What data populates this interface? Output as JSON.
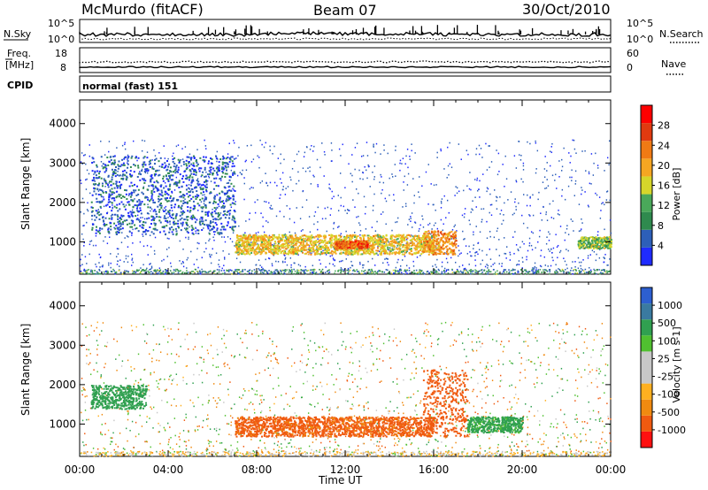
{
  "header": {
    "station": "McMurdo (fitACF)",
    "beam": "Beam 07",
    "date": "30/Oct/2010"
  },
  "noise_panel": {
    "left_label": "N.Sky",
    "right_label": "N.Search",
    "left_ticks": [
      "10^5",
      "10^0"
    ],
    "right_ticks": [
      "10^5",
      "10^0"
    ]
  },
  "freq_panel": {
    "left_label_1": "Freq.",
    "left_label_2": "[MHz]",
    "left_ticks": [
      "18",
      "8"
    ],
    "right_label": "Nave",
    "right_ticks": [
      "60",
      "0"
    ]
  },
  "cpid": {
    "label": "CPID",
    "value": "normal (fast) 151"
  },
  "colors": {
    "power_scale": [
      "#1f2bff",
      "#2d5fb8",
      "#2f8a4e",
      "#4aa85a",
      "#d6d62a",
      "#f5a622",
      "#f07a14",
      "#e03a10",
      "#ff0000"
    ],
    "velocity_scale": [
      "#ff1010",
      "#f05a10",
      "#f08a10",
      "#ffb020",
      "#c8c8c8",
      "#c8c8c8",
      "#50c030",
      "#30a050",
      "#3a7aa0",
      "#2d5fd0"
    ]
  },
  "chart_data": [
    {
      "type": "heatmap",
      "title": "",
      "xlabel": "Time UT",
      "ylabel": "Slant Range [km]",
      "x_ticks": [
        "00:00",
        "04:00",
        "08:00",
        "12:00",
        "16:00",
        "20:00",
        "00:00"
      ],
      "y_ticks": [
        "1000",
        "2000",
        "3000",
        "4000"
      ],
      "xlim": [
        0,
        24
      ],
      "ylim": [
        180,
        4600
      ],
      "colorbar": {
        "label": "Power [dB]",
        "ticks": [
          "4",
          "8",
          "12",
          "16",
          "20",
          "24",
          "28"
        ]
      },
      "features": [
        {
          "t_start": 0.5,
          "t_end": 7.0,
          "range_min": 1200,
          "range_max": 3200,
          "value": 6
        },
        {
          "t_start": 7.0,
          "t_end": 16.0,
          "range_min": 700,
          "range_max": 1200,
          "value": 20
        },
        {
          "t_start": 11.5,
          "t_end": 13.0,
          "range_min": 850,
          "range_max": 1050,
          "value": 28
        },
        {
          "t_start": 15.5,
          "t_end": 17.0,
          "range_min": 700,
          "range_max": 1300,
          "value": 24
        },
        {
          "t_start": 22.5,
          "t_end": 24.0,
          "range_min": 850,
          "range_max": 1150,
          "value": 16
        }
      ]
    },
    {
      "type": "heatmap",
      "title": "",
      "xlabel": "Time UT",
      "ylabel": "Slant Range [km]",
      "x_ticks": [
        "00:00",
        "04:00",
        "08:00",
        "12:00",
        "16:00",
        "20:00",
        "00:00"
      ],
      "y_ticks": [
        "1000",
        "2000",
        "3000",
        "4000"
      ],
      "xlim": [
        0,
        24
      ],
      "ylim": [
        180,
        4600
      ],
      "colorbar": {
        "label": "Velocity [m s-1]",
        "ticks": [
          "1000",
          "500",
          "100",
          "25",
          "-25",
          "-100",
          "-500",
          "-1000"
        ]
      },
      "features": [
        {
          "t_start": 0.5,
          "t_end": 3.0,
          "range_min": 1400,
          "range_max": 2000,
          "value": 200
        },
        {
          "t_start": 7.0,
          "t_end": 16.0,
          "range_min": 700,
          "range_max": 1200,
          "value": -150
        },
        {
          "t_start": 15.5,
          "t_end": 17.5,
          "range_min": 700,
          "range_max": 2400,
          "value": -300
        },
        {
          "t_start": 17.5,
          "t_end": 20.0,
          "range_min": 800,
          "range_max": 1200,
          "value": 150
        }
      ]
    }
  ]
}
